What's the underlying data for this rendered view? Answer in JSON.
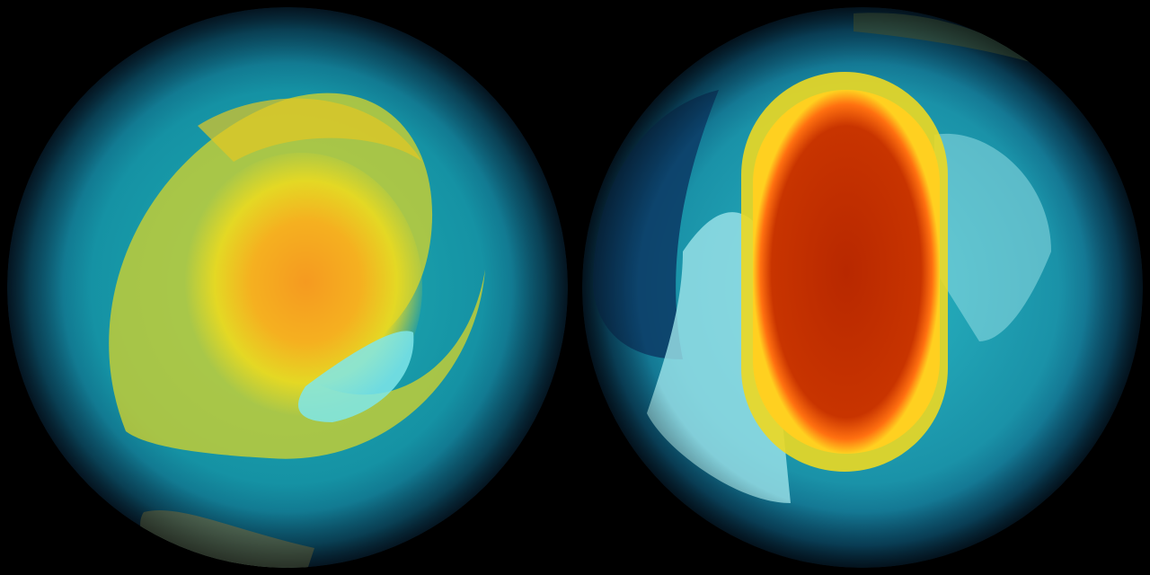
{
  "scene": {
    "background": "#000000",
    "globes": [
      {
        "view": "left-globe",
        "colors": {
          "ocean": "#0f5a78",
          "band": "#1aa6b0",
          "mid": "#d8d020",
          "core": "#f5a020",
          "ice": "#7fe6ea",
          "land": "#6a7a5a"
        }
      },
      {
        "view": "right-globe",
        "colors": {
          "ocean": "#0b4c72",
          "band": "#20b0c0",
          "ring": "#f0e020",
          "core": "#c03000",
          "edge": "#ff6a10",
          "ice": "#9ee4ea"
        }
      }
    ]
  }
}
